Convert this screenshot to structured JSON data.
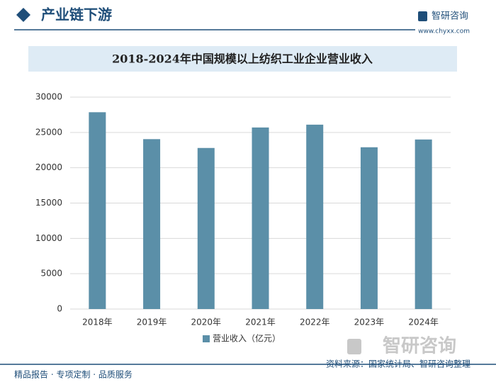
{
  "header": {
    "title": "产业链下游",
    "logo": "智研咨询",
    "url": "www.chyxx.com"
  },
  "chart_data": {
    "type": "bar",
    "title": "2018-2024年中国规模以上纺织工业企业营业收入",
    "categories": [
      "2018年",
      "2019年",
      "2020年",
      "2021年",
      "2022年",
      "2023年",
      "2024年"
    ],
    "series": [
      {
        "name": "营业收入（亿元）",
        "color": "#5b8fa8",
        "values": [
          27860,
          24050,
          22800,
          25700,
          26100,
          22900,
          24000
        ]
      }
    ],
    "ylim": [
      0,
      30000
    ],
    "yticks": [
      0,
      5000,
      10000,
      15000,
      20000,
      25000,
      30000
    ],
    "grid": true,
    "legend": "bottom"
  },
  "watermark": "智研咨询",
  "footer": {
    "left": "精品报告 · 专项定制 · 品质服务",
    "source": "资料来源：国家统计局、智研咨询整理"
  }
}
